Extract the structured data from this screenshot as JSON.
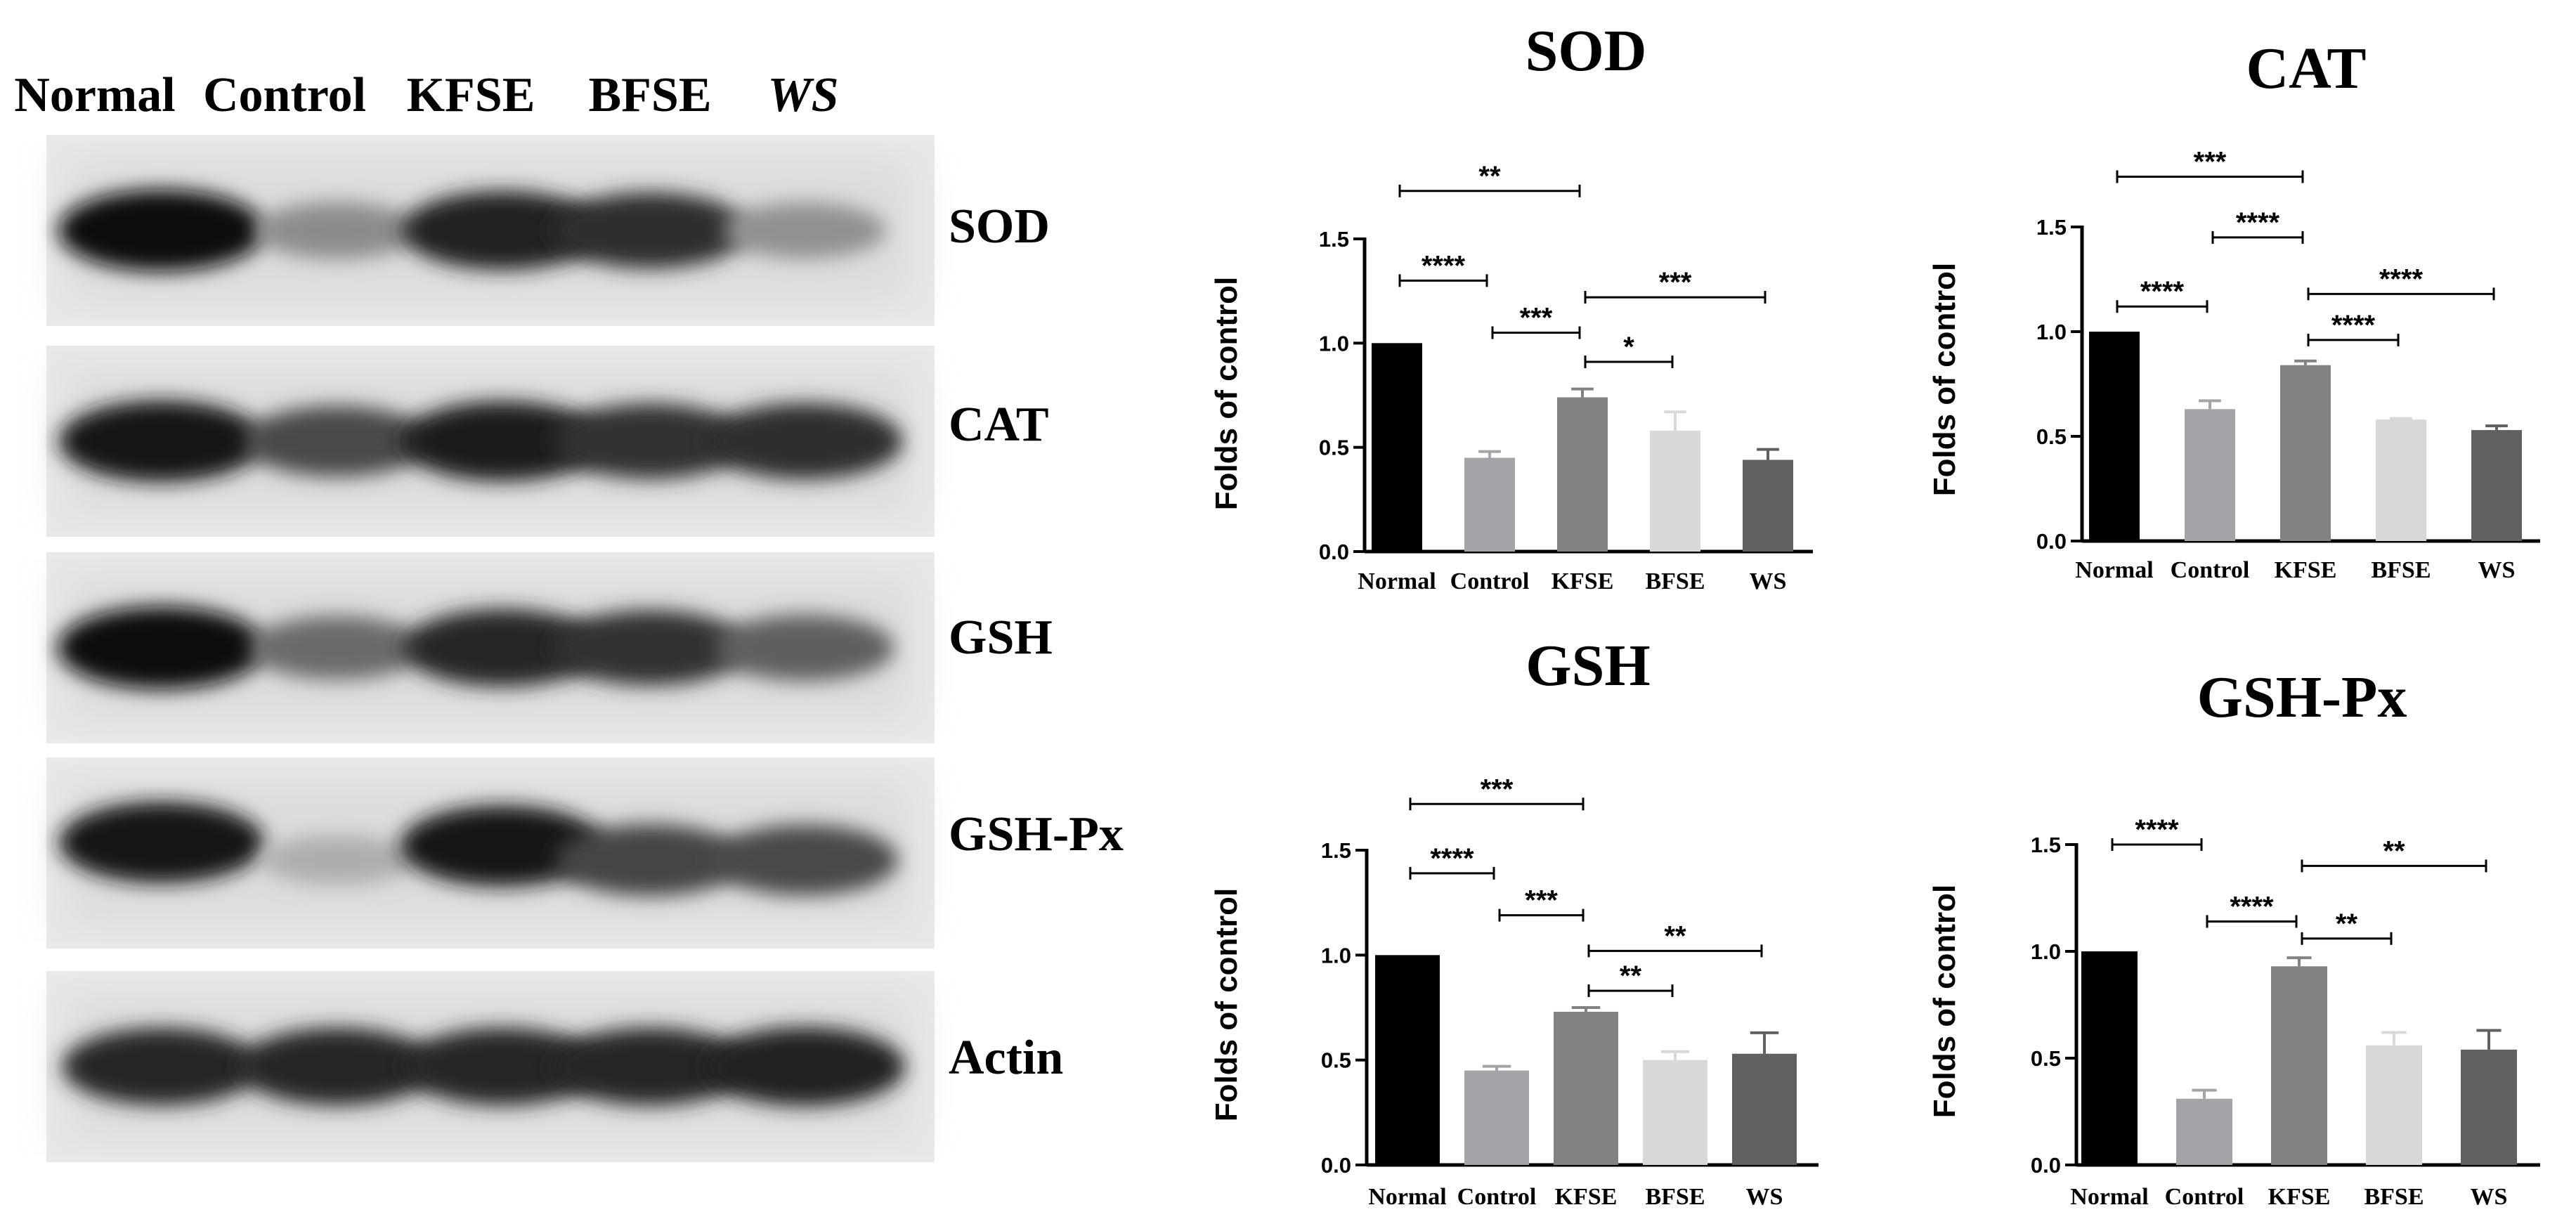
{
  "blot": {
    "lanes": [
      "Normal",
      "Control",
      "KFSE",
      "BFSE",
      "WS"
    ],
    "proteins": [
      "SOD",
      "CAT",
      "GSH",
      "GSH-Px",
      "Actin"
    ],
    "band_intensity": [
      [
        0.95,
        0.4,
        0.88,
        0.82,
        0.38
      ],
      [
        0.93,
        0.7,
        0.9,
        0.8,
        0.82
      ],
      [
        0.97,
        0.55,
        0.85,
        0.8,
        0.6
      ],
      [
        0.93,
        0.25,
        0.92,
        0.72,
        0.7
      ],
      [
        0.85,
        0.85,
        0.85,
        0.85,
        0.88
      ]
    ]
  },
  "chart_data": [
    {
      "type": "bar",
      "title": "SOD",
      "ylabel": "Folds of control",
      "categories": [
        "Normal",
        "Control",
        "KFSE",
        "BFSE",
        "WS"
      ],
      "values": [
        1.0,
        0.45,
        0.74,
        0.58,
        0.44
      ],
      "errors": [
        0.0,
        0.03,
        0.04,
        0.09,
        0.05
      ],
      "colors": [
        "#000000",
        "#a4a4a8",
        "#828282",
        "#d8d8d8",
        "#606060"
      ],
      "ylim": [
        0,
        1.5
      ],
      "yticks": [
        "0.0",
        "0.5",
        "1.0",
        "1.5"
      ],
      "significance": [
        {
          "from": 0,
          "to": 2,
          "label": "**",
          "y": 1.73
        },
        {
          "from": 0,
          "to": 1,
          "label": "****",
          "y": 1.3
        },
        {
          "from": 1,
          "to": 2,
          "label": "***",
          "y": 1.05
        },
        {
          "from": 2,
          "to": 4,
          "label": "***",
          "y": 1.22
        },
        {
          "from": 2,
          "to": 3,
          "label": "*",
          "y": 0.91
        }
      ]
    },
    {
      "type": "bar",
      "title": "CAT",
      "ylabel": "Folds of control",
      "categories": [
        "Normal",
        "Control",
        "KFSE",
        "BFSE",
        "WS"
      ],
      "values": [
        1.0,
        0.63,
        0.84,
        0.58,
        0.53
      ],
      "errors": [
        0.0,
        0.04,
        0.02,
        0.005,
        0.02
      ],
      "colors": [
        "#000000",
        "#a4a4a8",
        "#828282",
        "#d8d8d8",
        "#606060"
      ],
      "ylim": [
        0,
        1.5
      ],
      "yticks": [
        "0.0",
        "0.5",
        "1.0",
        "1.5"
      ],
      "significance": [
        {
          "from": 0,
          "to": 2,
          "label": "***",
          "y": 1.74
        },
        {
          "from": 1,
          "to": 2,
          "label": "****",
          "y": 1.45
        },
        {
          "from": 0,
          "to": 1,
          "label": "****",
          "y": 1.12
        },
        {
          "from": 2,
          "to": 4,
          "label": "****",
          "y": 1.18
        },
        {
          "from": 2,
          "to": 3,
          "label": "****",
          "y": 0.96
        }
      ]
    },
    {
      "type": "bar",
      "title": "GSH",
      "ylabel": "Folds of control",
      "categories": [
        "Normal",
        "Control",
        "KFSE",
        "BFSE",
        "WS"
      ],
      "values": [
        1.0,
        0.45,
        0.73,
        0.5,
        0.53
      ],
      "errors": [
        0.0,
        0.02,
        0.02,
        0.04,
        0.1
      ],
      "colors": [
        "#000000",
        "#a4a4a8",
        "#828282",
        "#d8d8d8",
        "#606060"
      ],
      "ylim": [
        0,
        1.5
      ],
      "yticks": [
        "0.0",
        "0.5",
        "1.0",
        "1.5"
      ],
      "significance": [
        {
          "from": 0,
          "to": 2,
          "label": "***",
          "y": 1.72
        },
        {
          "from": 0,
          "to": 1,
          "label": "****",
          "y": 1.39
        },
        {
          "from": 1,
          "to": 2,
          "label": "***",
          "y": 1.19
        },
        {
          "from": 2,
          "to": 4,
          "label": "**",
          "y": 1.02
        },
        {
          "from": 2,
          "to": 3,
          "label": "**",
          "y": 0.83
        }
      ]
    },
    {
      "type": "bar",
      "title": "GSH-Px",
      "ylabel": "Folds of control",
      "categories": [
        "Normal",
        "Control",
        "KFSE",
        "BFSE",
        "WS"
      ],
      "values": [
        1.0,
        0.31,
        0.93,
        0.56,
        0.54
      ],
      "errors": [
        0.0,
        0.04,
        0.04,
        0.06,
        0.09
      ],
      "colors": [
        "#000000",
        "#a4a4a8",
        "#828282",
        "#d8d8d8",
        "#606060"
      ],
      "ylim": [
        0,
        1.5
      ],
      "yticks": [
        "0.0",
        "0.5",
        "1.0",
        "1.5"
      ],
      "significance": [
        {
          "from": 0,
          "to": 1,
          "label": "****",
          "y": 1.5
        },
        {
          "from": 1,
          "to": 2,
          "label": "****",
          "y": 1.14
        },
        {
          "from": 2,
          "to": 4,
          "label": "**",
          "y": 1.4
        },
        {
          "from": 2,
          "to": 3,
          "label": "**",
          "y": 1.06
        }
      ]
    }
  ]
}
